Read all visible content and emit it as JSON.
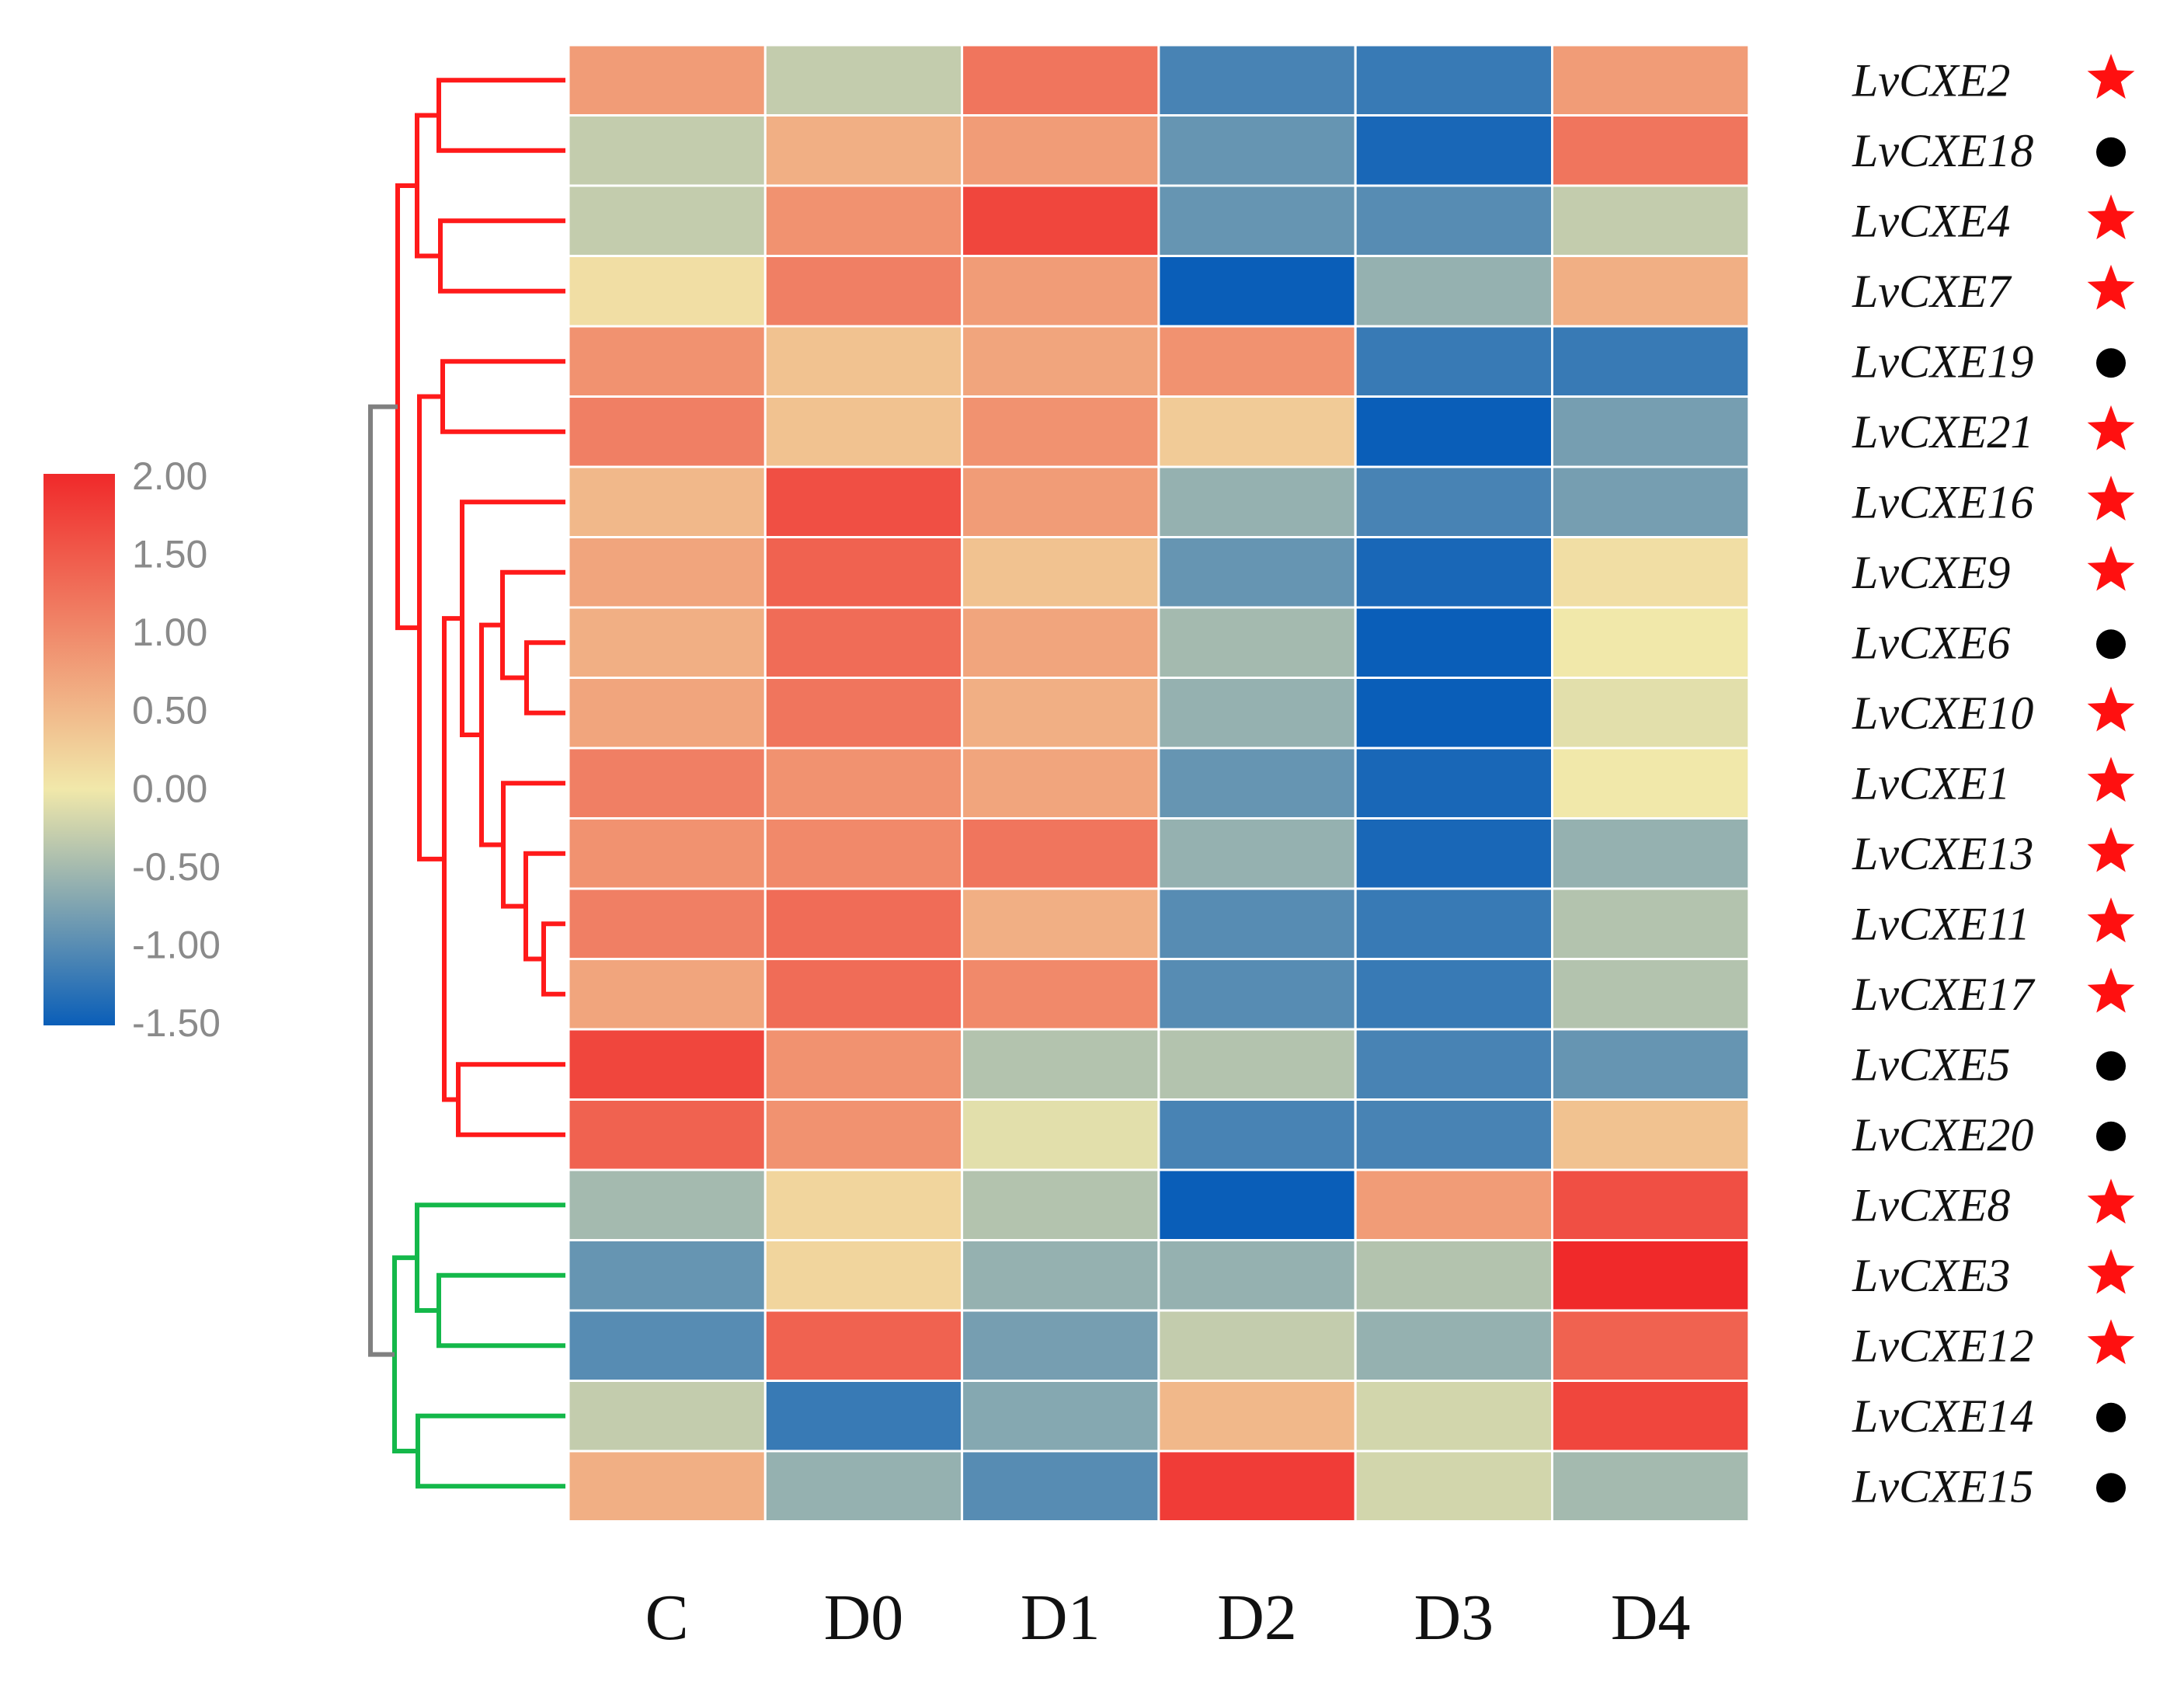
{
  "chart_data": {
    "type": "heatmap",
    "title": "",
    "columns": [
      "C",
      "D0",
      "D1",
      "D2",
      "D3",
      "D4"
    ],
    "rows": [
      {
        "label": "LvCXE2",
        "marker": "star",
        "values": [
          0.8,
          -0.3,
          1.2,
          -1.1,
          -1.2,
          0.8
        ]
      },
      {
        "label": "LvCXE18",
        "marker": "circle",
        "values": [
          -0.3,
          0.6,
          0.8,
          -0.9,
          -1.4,
          1.2
        ]
      },
      {
        "label": "LvCXE4",
        "marker": "star",
        "values": [
          -0.3,
          0.9,
          1.7,
          -0.9,
          -1.0,
          -0.3
        ]
      },
      {
        "label": "LvCXE7",
        "marker": "star",
        "values": [
          0.1,
          1.1,
          0.8,
          -1.8,
          -0.6,
          0.6
        ]
      },
      {
        "label": "LvCXE19",
        "marker": "circle",
        "values": [
          0.9,
          0.4,
          0.7,
          0.9,
          -1.2,
          -1.2
        ]
      },
      {
        "label": "LvCXE21",
        "marker": "star",
        "values": [
          1.1,
          0.4,
          0.9,
          0.3,
          -1.5,
          -0.8
        ]
      },
      {
        "label": "LvCXE16",
        "marker": "star",
        "values": [
          0.5,
          1.6,
          0.8,
          -0.6,
          -1.1,
          -0.8
        ]
      },
      {
        "label": "LvCXE9",
        "marker": "star",
        "values": [
          0.7,
          1.4,
          0.4,
          -0.9,
          -1.4,
          0.1
        ]
      },
      {
        "label": "LvCXE6",
        "marker": "circle",
        "values": [
          0.6,
          1.3,
          0.7,
          -0.5,
          -1.7,
          0.0
        ]
      },
      {
        "label": "LvCXE10",
        "marker": "star",
        "values": [
          0.7,
          1.2,
          0.6,
          -0.6,
          -1.7,
          -0.1
        ]
      },
      {
        "label": "LvCXE1",
        "marker": "star",
        "values": [
          1.1,
          0.9,
          0.7,
          -0.9,
          -1.4,
          0.0
        ]
      },
      {
        "label": "LvCXE13",
        "marker": "star",
        "values": [
          0.9,
          1.0,
          1.2,
          -0.6,
          -1.4,
          -0.6
        ]
      },
      {
        "label": "LvCXE11",
        "marker": "star",
        "values": [
          1.1,
          1.3,
          0.6,
          -1.0,
          -1.2,
          -0.4
        ]
      },
      {
        "label": "LvCXE17",
        "marker": "star",
        "values": [
          0.7,
          1.3,
          1.0,
          -1.0,
          -1.2,
          -0.4
        ]
      },
      {
        "label": "LvCXE5",
        "marker": "circle",
        "values": [
          1.7,
          0.9,
          -0.4,
          -0.4,
          -1.1,
          -0.9
        ]
      },
      {
        "label": "LvCXE20",
        "marker": "circle",
        "values": [
          1.4,
          0.9,
          -0.1,
          -1.1,
          -1.1,
          0.4
        ]
      },
      {
        "label": "LvCXE8",
        "marker": "star",
        "values": [
          -0.5,
          0.2,
          -0.4,
          -1.5,
          0.8,
          1.6
        ]
      },
      {
        "label": "LvCXE3",
        "marker": "star",
        "values": [
          -0.9,
          0.2,
          -0.6,
          -0.6,
          -0.4,
          2.0
        ]
      },
      {
        "label": "LvCXE12",
        "marker": "star",
        "values": [
          -1.0,
          1.4,
          -0.8,
          -0.3,
          -0.6,
          1.4
        ]
      },
      {
        "label": "LvCXE14",
        "marker": "circle",
        "values": [
          -0.3,
          -1.2,
          -0.7,
          0.5,
          -0.2,
          1.7
        ]
      },
      {
        "label": "LvCXE15",
        "marker": "circle",
        "values": [
          0.6,
          -0.6,
          -1.0,
          1.8,
          -0.2,
          -0.5
        ]
      }
    ],
    "color_scale": {
      "min": -1.5,
      "max": 2.0,
      "stops": [
        {
          "value": -1.5,
          "color": "#0a5eb8"
        },
        {
          "value": 0.0,
          "color": "#f1e8aa"
        },
        {
          "value": 2.0,
          "color": "#f0292a"
        }
      ],
      "ticks": [
        "2.00",
        "1.50",
        "1.00",
        "0.50",
        "0.00",
        "-0.50",
        "-1.00",
        "-1.50"
      ]
    },
    "dendrogram": {
      "clusters": [
        {
          "name": "cluster-1",
          "color": "#ff1a1a",
          "rows": [
            "LvCXE2",
            "LvCXE18",
            "LvCXE4",
            "LvCXE7",
            "LvCXE19",
            "LvCXE21",
            "LvCXE16",
            "LvCXE9",
            "LvCXE6",
            "LvCXE10",
            "LvCXE1",
            "LvCXE13",
            "LvCXE11",
            "LvCXE17",
            "LvCXE5",
            "LvCXE20"
          ]
        },
        {
          "name": "cluster-2",
          "color": "#14b84a",
          "rows": [
            "LvCXE8",
            "LvCXE3",
            "LvCXE12",
            "LvCXE14",
            "LvCXE15"
          ]
        }
      ],
      "root_color": "#808080"
    },
    "marker_colors": {
      "star": "#ff1010",
      "circle": "#000000"
    }
  }
}
